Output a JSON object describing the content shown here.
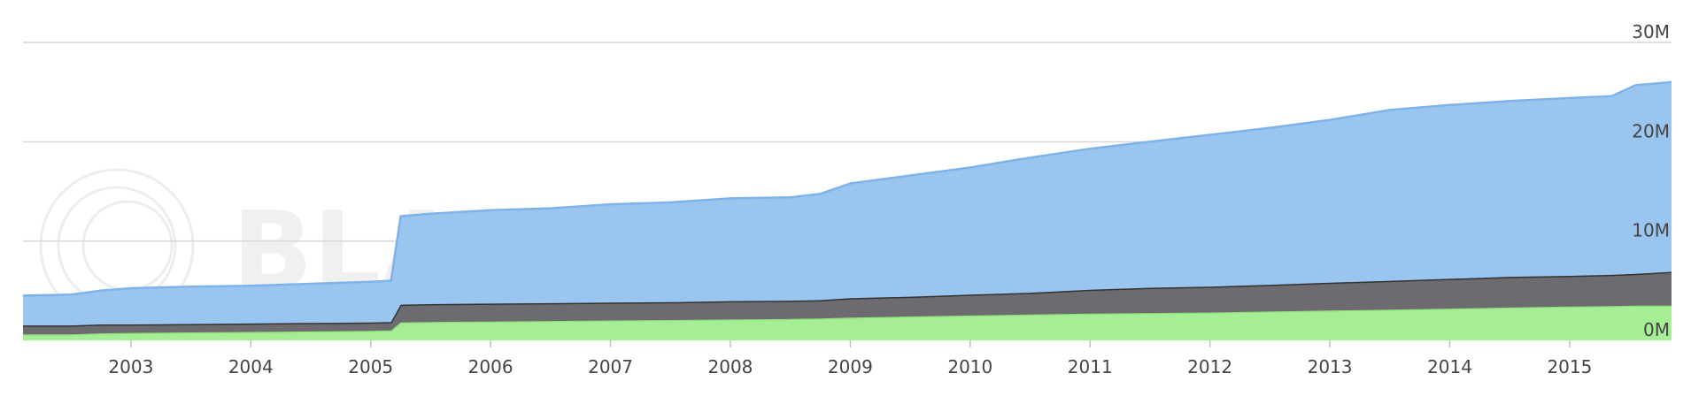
{
  "chart_data": {
    "type": "area",
    "stacked": true,
    "x_label": "",
    "y_label": "",
    "x_range": [
      2002.1,
      2015.85
    ],
    "ylim": [
      0,
      30000000
    ],
    "y_ticks": [
      0,
      10000000,
      20000000,
      30000000
    ],
    "y_tick_labels": [
      "0M",
      "10M",
      "20M",
      "30M"
    ],
    "x_ticks": [
      2003,
      2004,
      2005,
      2006,
      2007,
      2008,
      2009,
      2010,
      2011,
      2012,
      2013,
      2014,
      2015
    ],
    "x_tick_labels": [
      "2003",
      "2004",
      "2005",
      "2006",
      "2007",
      "2008",
      "2009",
      "2010",
      "2011",
      "2012",
      "2013",
      "2014",
      "2015"
    ],
    "grid": true,
    "legend": "none",
    "watermark": "BLACKDUCK | Open HUB",
    "x": [
      2002.1,
      2002.5,
      2002.75,
      2003.0,
      2003.5,
      2004.0,
      2004.5,
      2005.0,
      2005.17,
      2005.25,
      2005.5,
      2006.0,
      2006.5,
      2007.0,
      2007.5,
      2008.0,
      2008.5,
      2008.75,
      2009.0,
      2009.5,
      2010.0,
      2010.5,
      2011.0,
      2011.5,
      2012.0,
      2012.5,
      2013.0,
      2013.5,
      2014.0,
      2014.5,
      2015.0,
      2015.35,
      2015.55,
      2015.85
    ],
    "series": [
      {
        "color": "#a6ee95",
        "values": [
          0.6,
          0.6,
          0.7,
          0.75,
          0.8,
          0.85,
          0.9,
          0.95,
          1.0,
          1.8,
          1.85,
          1.9,
          1.95,
          2.0,
          2.05,
          2.1,
          2.15,
          2.2,
          2.3,
          2.4,
          2.5,
          2.6,
          2.7,
          2.75,
          2.8,
          2.9,
          3.0,
          3.1,
          3.2,
          3.3,
          3.4,
          3.45,
          3.5,
          3.5
        ]
      },
      {
        "color": "#6d6b6f",
        "values": [
          0.9,
          0.9,
          0.9,
          0.85,
          0.85,
          0.85,
          0.85,
          0.85,
          0.85,
          1.8,
          1.8,
          1.8,
          1.8,
          1.8,
          1.8,
          1.85,
          1.85,
          1.85,
          1.95,
          2.0,
          2.1,
          2.2,
          2.4,
          2.55,
          2.6,
          2.7,
          2.8,
          2.9,
          3.0,
          3.1,
          3.1,
          3.15,
          3.2,
          3.4
        ]
      },
      {
        "color": "#9ac5ef",
        "values": [
          3.0,
          3.1,
          3.4,
          3.65,
          3.75,
          3.8,
          3.95,
          4.1,
          4.15,
          8.9,
          9.1,
          9.4,
          9.55,
          9.9,
          10.05,
          10.35,
          10.4,
          10.7,
          11.55,
          12.2,
          12.8,
          13.6,
          14.2,
          14.7,
          15.3,
          15.8,
          16.4,
          17.2,
          17.5,
          17.7,
          17.9,
          18.0,
          19.0,
          19.1
        ]
      }
    ]
  }
}
